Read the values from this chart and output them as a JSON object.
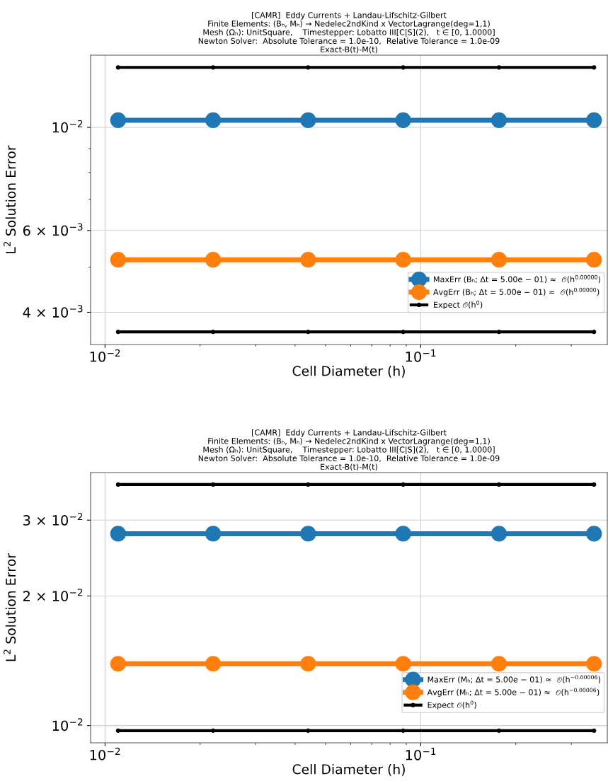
{
  "chart_data": [
    {
      "type": "line",
      "title": "[CAMR]  Eddy Currents + Landau-Lifschitz-Gilbert\nFinite Elements: (Bₕ, Mₕ) → Nedelec2ndKind x VectorLagrange(deg=1,1)\nMesh (Ωₕ): UnitSquare,    Timestepper: Lobatto III[C|S](2),   t ∈ [0, 1.0000]\nNewton Solver:  Absolute Tolerance = 1.0e-10,  Relative Tolerance = 1.0e-09\nExact-B(t)-M(t)",
      "xlabel": "Cell Diameter (h)",
      "ylabel": "L$^{2}$ Solution Error",
      "log": "xy",
      "grid": true,
      "legend": "bottom right",
      "marker": "circle",
      "line_style": "solid",
      "x": [
        0.011,
        0.022,
        0.044,
        0.088,
        0.177,
        0.354
      ],
      "xlim": [
        0.009,
        0.39
      ],
      "ylim": [
        0.00341,
        0.0143
      ],
      "xticks": [
        {
          "value": 0.01,
          "label": "10$^{−2}$"
        },
        {
          "value": 0.02,
          "label": null
        },
        {
          "value": 0.03,
          "label": null
        },
        {
          "value": 0.04,
          "label": null
        },
        {
          "value": 0.05,
          "label": null
        },
        {
          "value": 0.06,
          "label": null
        },
        {
          "value": 0.07,
          "label": null
        },
        {
          "value": 0.08,
          "label": null
        },
        {
          "value": 0.09,
          "label": null
        },
        {
          "value": 0.1,
          "label": "10$^{−1}$"
        },
        {
          "value": 0.2,
          "label": null
        },
        {
          "value": 0.3,
          "label": null
        }
      ],
      "yticks": [
        {
          "value": 0.004,
          "label": "4 × 10$^{−3}$"
        },
        {
          "value": 0.005,
          "label": null
        },
        {
          "value": 0.006,
          "label": "6 × 10$^{−3}$"
        },
        {
          "value": 0.007,
          "label": null
        },
        {
          "value": 0.008,
          "label": null
        },
        {
          "value": 0.009,
          "label": null
        },
        {
          "value": 0.01,
          "label": "10$^{−2}$"
        }
      ],
      "series": [
        {
          "name": "MaxErr (Bₕ; Δt = 5.00e − 01) ≈  𝒪(h$^{0.00000}$)",
          "color": "#1f77b4",
          "values": [
            0.01036,
            0.01036,
            0.01036,
            0.01036,
            0.01036,
            0.01036
          ]
        },
        {
          "name": "AvgErr (Bₕ; Δt = 5.00e − 01) ≈  𝒪(h$^{0.00000}$)",
          "color": "#ff7f0e",
          "values": [
            0.00519,
            0.00519,
            0.00519,
            0.00519,
            0.00519,
            0.00519
          ]
        },
        {
          "name": "Expect 𝒪(h$^{0}$)",
          "color": "#000000",
          "values": [
            0.01346,
            0.01346,
            0.01346,
            0.01346,
            0.01346,
            0.01346
          ]
        },
        {
          "color": "#000000",
          "values": [
            0.00363,
            0.00363,
            0.00363,
            0.00363,
            0.00363,
            0.00363
          ]
        }
      ]
    },
    {
      "type": "line",
      "title": "[CAMR]  Eddy Currents + Landau-Lifschitz-Gilbert\nFinite Elements: (Bₕ, Mₕ) → Nedelec2ndKind x VectorLagrange(deg=1,1)\nMesh (Ωₕ): UnitSquare,    Timestepper: Lobatto III[C|S](2),   t ∈ [0, 1.0000]\nNewton Solver:  Absolute Tolerance = 1.0e-10,  Relative Tolerance = 1.0e-09\nExact-B(t)-M(t)",
      "xlabel": "Cell Diameter (h)",
      "ylabel": "L$^{2}$ Solution Error",
      "log": "xy",
      "grid": true,
      "legend": "bottom right",
      "marker": "circle",
      "line_style": "solid",
      "x": [
        0.011,
        0.022,
        0.044,
        0.088,
        0.177,
        0.354
      ],
      "xlim": [
        0.009,
        0.39
      ],
      "ylim": [
        0.00912,
        0.0387
      ],
      "xticks": [
        {
          "value": 0.01,
          "label": "10$^{−2}$"
        },
        {
          "value": 0.02,
          "label": null
        },
        {
          "value": 0.03,
          "label": null
        },
        {
          "value": 0.04,
          "label": null
        },
        {
          "value": 0.05,
          "label": null
        },
        {
          "value": 0.06,
          "label": null
        },
        {
          "value": 0.07,
          "label": null
        },
        {
          "value": 0.08,
          "label": null
        },
        {
          "value": 0.09,
          "label": null
        },
        {
          "value": 0.1,
          "label": "10$^{−1}$"
        },
        {
          "value": 0.2,
          "label": null
        },
        {
          "value": 0.3,
          "label": null
        }
      ],
      "yticks": [
        {
          "value": 0.01,
          "label": "10$^{−2}$"
        },
        {
          "value": 0.02,
          "label": "2 × 10$^{−2}$"
        },
        {
          "value": 0.03,
          "label": "3 × 10$^{−2}$"
        }
      ],
      "series": [
        {
          "name": "MaxErr (Mₕ; Δt = 5.00e − 01) ≈  𝒪(h$^{−0.00006}$)",
          "color": "#1f77b4",
          "values": [
            0.0279,
            0.0279,
            0.0279,
            0.0279,
            0.0279,
            0.0279
          ]
        },
        {
          "name": "AvgErr (Mₕ; Δt = 5.00e − 01) ≈  𝒪(h$^{−0.00006}$)",
          "color": "#ff7f0e",
          "values": [
            0.01392,
            0.01392,
            0.01392,
            0.01392,
            0.01392,
            0.01392
          ]
        },
        {
          "name": "Expect 𝒪(h$^{0}$)",
          "color": "#000000",
          "values": [
            0.0363,
            0.0363,
            0.0363,
            0.0363,
            0.0363,
            0.0363
          ]
        },
        {
          "color": "#000000",
          "values": [
            0.00973,
            0.00973,
            0.00973,
            0.00973,
            0.00973,
            0.00973
          ]
        }
      ]
    }
  ]
}
